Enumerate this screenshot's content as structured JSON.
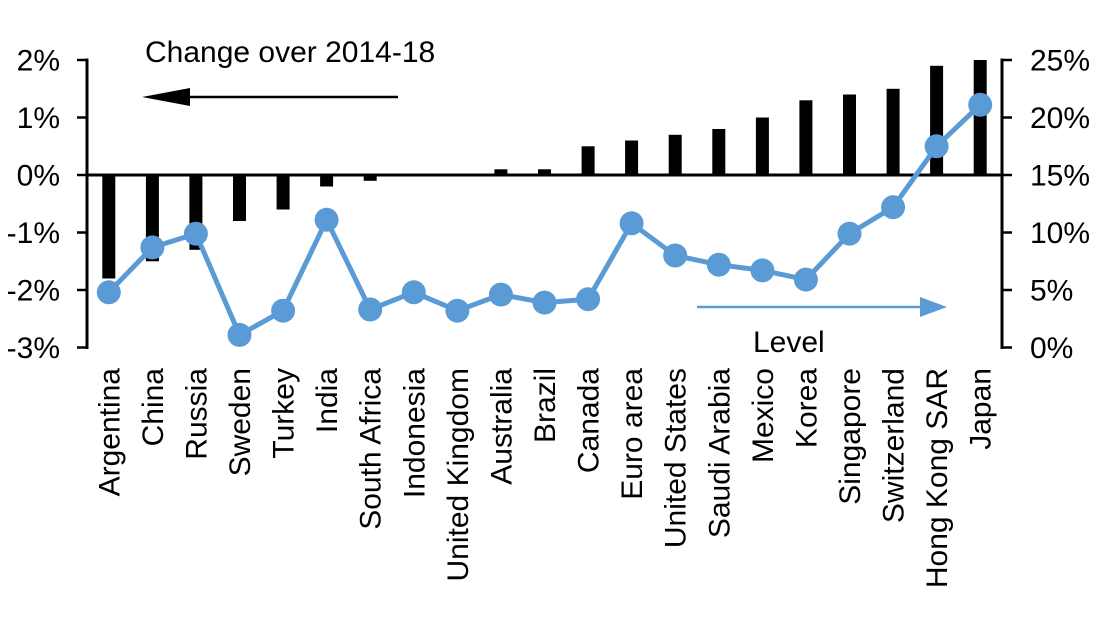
{
  "chart_data": {
    "type": "bar+line combo",
    "title": "",
    "categories": [
      "Argentina",
      "China",
      "Russia",
      "Sweden",
      "Turkey",
      "India",
      "South Africa",
      "Indonesia",
      "United Kingdom",
      "Australia",
      "Brazil",
      "Canada",
      "Euro area",
      "United States",
      "Saudi Arabia",
      "Mexico",
      "Korea",
      "Singapore",
      "Switzerland",
      "Hong Kong SAR",
      "Japan"
    ],
    "series": [
      {
        "name": "Change over 2014-18",
        "type": "bar",
        "axis": "left",
        "color": "#000000",
        "values": [
          -1.8,
          -1.5,
          -1.3,
          -0.8,
          -0.6,
          -0.2,
          -0.1,
          0.0,
          0.0,
          0.1,
          0.1,
          0.5,
          0.6,
          0.7,
          0.8,
          1.0,
          1.3,
          1.4,
          1.5,
          1.9,
          2.0
        ]
      },
      {
        "name": "Level",
        "type": "line",
        "axis": "right",
        "color": "#5B9BD5",
        "values": [
          4.8,
          8.7,
          9.9,
          1.1,
          3.2,
          11.1,
          3.3,
          4.8,
          3.2,
          4.6,
          3.9,
          4.2,
          10.8,
          8.0,
          7.2,
          6.7,
          5.9,
          9.9,
          12.2,
          17.5,
          21.1
        ]
      }
    ],
    "left_axis": {
      "min": -3,
      "max": 2,
      "tick_values": [
        2,
        1,
        0,
        -1,
        -2,
        -3
      ],
      "tick_labels": [
        "2%",
        "1%",
        "0%",
        "-1%",
        "-2%",
        "-3%"
      ]
    },
    "right_axis": {
      "min": 0,
      "max": 25,
      "tick_values": [
        25,
        20,
        15,
        10,
        5,
        0
      ],
      "tick_labels": [
        "25%",
        "20%",
        "15%",
        "10%",
        "5%",
        "0%"
      ]
    },
    "annotations": [
      {
        "text": "Change over 2014-18",
        "arrow": "left",
        "color": "#000000"
      },
      {
        "text": "Level",
        "arrow": "right",
        "color": "#5B9BD5"
      }
    ],
    "grid": false,
    "legend_position": "none",
    "background": "#ffffff"
  }
}
